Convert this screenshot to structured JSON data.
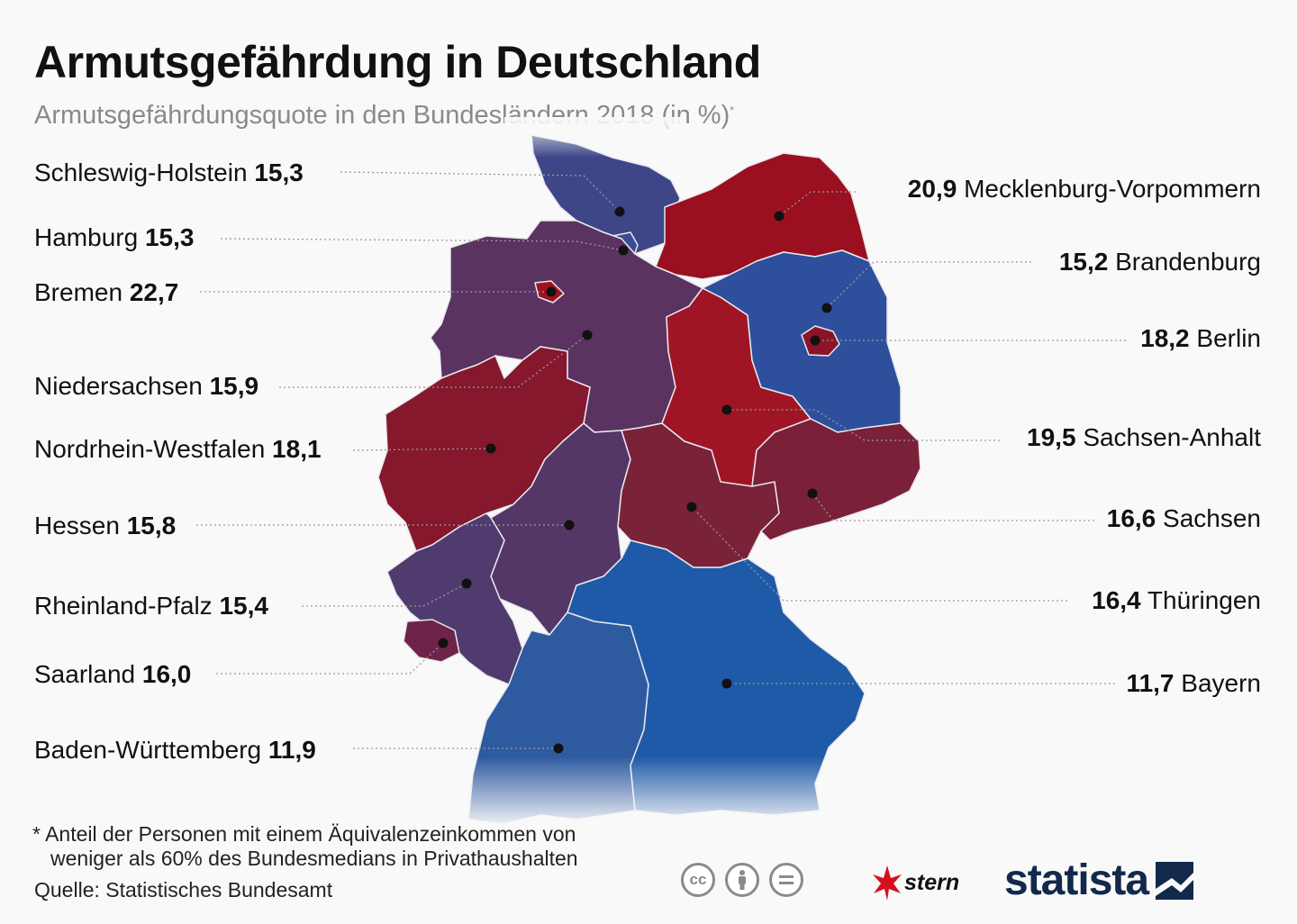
{
  "title": "Armutsgefährdung in Deutschland",
  "subtitle": "Armutsgefährdungsquote in den Bundesländern 2018 (in %)",
  "subtitle_marker": "*",
  "colors": {
    "low": "#1f5aa8",
    "mid": "#5a3a6e",
    "high": "#9a1020",
    "background": "#f9f9f9"
  },
  "regions": {
    "sh": {
      "name": "Schleswig-Holstein",
      "value": "15,3"
    },
    "hh": {
      "name": "Hamburg",
      "value": "15,3"
    },
    "hb": {
      "name": "Bremen",
      "value": "22,7"
    },
    "ni": {
      "name": "Niedersachsen",
      "value": "15,9"
    },
    "nw": {
      "name": "Nordrhein-Westfalen",
      "value": "18,1"
    },
    "he": {
      "name": "Hessen",
      "value": "15,8"
    },
    "rp": {
      "name": "Rheinland-Pfalz",
      "value": "15,4"
    },
    "sl": {
      "name": "Saarland",
      "value": "16,0"
    },
    "bw": {
      "name": "Baden-Württemberg",
      "value": "11,9"
    },
    "mv": {
      "name": "Mecklenburg-Vorpommern",
      "value": "20,9"
    },
    "bb": {
      "name": "Brandenburg",
      "value": "15,2"
    },
    "be": {
      "name": "Berlin",
      "value": "18,2"
    },
    "st": {
      "name": "Sachsen-Anhalt",
      "value": "19,5"
    },
    "sn": {
      "name": "Sachsen",
      "value": "16,6"
    },
    "th": {
      "name": "Thüringen",
      "value": "16,4"
    },
    "by": {
      "name": "Bayern",
      "value": "11,7"
    }
  },
  "footnote": {
    "line1": "* Anteil der Personen mit einem Äquivalenzeinkommen von",
    "line2": "weniger als 60% des Bundesmedians in Privathaushalten"
  },
  "source": "Quelle: Statistisches Bundesamt",
  "license_icons": [
    "cc-icon",
    "by-icon",
    "nd-icon"
  ],
  "brand": {
    "stern": "stern",
    "statista": "statista"
  }
}
